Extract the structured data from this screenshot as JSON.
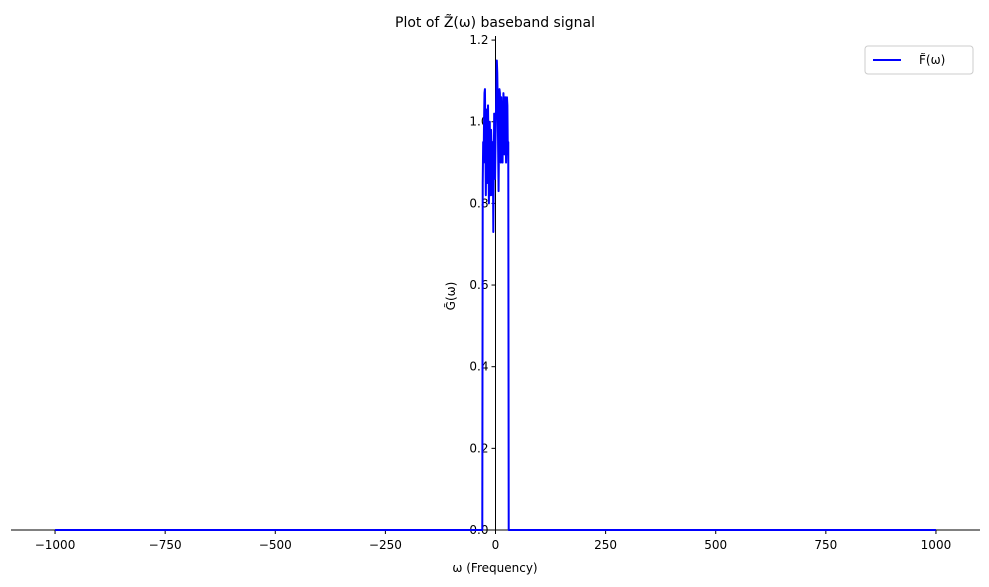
{
  "chart_data": {
    "type": "line",
    "title": "Plot of Z̃(ω) baseband signal",
    "xlabel": "ω (Frequency)",
    "ylabel": "G̃(ω)",
    "xlim": [
      -1100,
      1100
    ],
    "ylim": [
      0,
      1.21
    ],
    "xticks": [
      -1000,
      -750,
      -500,
      -250,
      0,
      250,
      500,
      750,
      1000
    ],
    "xtick_labels": [
      "−1000",
      "−750",
      "−500",
      "−250",
      "0",
      "250",
      "500",
      "750",
      "1000"
    ],
    "yticks": [
      0.0,
      0.2,
      0.4,
      0.6,
      0.8,
      1.0,
      1.2
    ],
    "ytick_labels": [
      "0.0",
      "0.2",
      "0.4",
      "0.6",
      "0.8",
      "1.0",
      "1.2"
    ],
    "grid": false,
    "legend_position": "top-right",
    "series": [
      {
        "name": "F̃(ω)",
        "color": "#0000ff",
        "x": [
          -1000,
          -30,
          -29,
          -28,
          -27,
          -26,
          -25,
          -24,
          -23,
          -22,
          -21,
          -20,
          -19,
          -18,
          -17,
          -16,
          -15,
          -14,
          -13,
          -12,
          -11,
          -10,
          -9,
          -8,
          -7,
          -6,
          -5,
          -4,
          -3,
          -2,
          -1,
          0,
          1,
          2,
          3,
          4,
          5,
          6,
          7,
          8,
          9,
          10,
          11,
          12,
          13,
          14,
          15,
          16,
          17,
          18,
          19,
          20,
          21,
          22,
          23,
          24,
          25,
          26,
          27,
          28,
          29,
          30,
          1000
        ],
        "y": [
          0,
          0,
          0.85,
          0.95,
          0.9,
          1.0,
          1.07,
          1.08,
          0.98,
          0.82,
          0.92,
          1.03,
          0.85,
          0.88,
          1.04,
          0.95,
          0.8,
          0.92,
          1.0,
          0.9,
          0.82,
          0.98,
          0.94,
          0.86,
          0.82,
          0.95,
          0.73,
          0.88,
          1.02,
          0.9,
          0.86,
          0.95,
          1.02,
          1.08,
          1.15,
          1.12,
          1.05,
          0.93,
          0.83,
          0.96,
          1.08,
          1.07,
          0.98,
          0.9,
          1.06,
          1.0,
          0.95,
          0.9,
          1.0,
          1.07,
          1.03,
          0.92,
          0.96,
          1.06,
          0.98,
          0.9,
          0.95,
          1.06,
          1.04,
          0.92,
          0.95,
          0,
          0
        ]
      }
    ]
  }
}
